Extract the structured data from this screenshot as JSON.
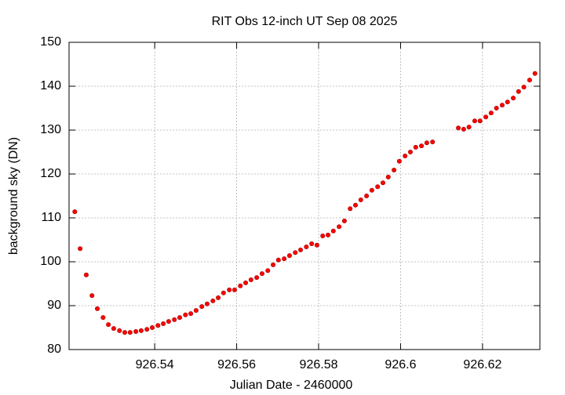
{
  "chart_data": {
    "type": "scatter",
    "title": "RIT Obs 12-inch UT Sep 08 2025",
    "x_label": "Julian Date - 2460000",
    "y_label": "background sky (DN)",
    "color": "#ff0000",
    "grid": true,
    "xlim": [
      926.5191,
      926.634
    ],
    "ylim": [
      80,
      150
    ],
    "xticks": [
      926.54,
      926.56,
      926.58,
      926.6,
      926.62
    ],
    "yticks": [
      80,
      90,
      100,
      110,
      120,
      130,
      140,
      150
    ],
    "x": [
      926.5205,
      926.5218,
      926.5233,
      926.5247,
      926.526,
      926.5274,
      926.5287,
      926.53,
      926.5314,
      926.5327,
      926.534,
      926.5354,
      926.5367,
      926.5381,
      926.5394,
      926.5408,
      926.5421,
      926.5434,
      926.5448,
      926.5461,
      926.5475,
      926.5488,
      926.5501,
      926.5515,
      926.5528,
      926.5542,
      926.5555,
      926.5568,
      926.5582,
      926.5595,
      926.5609,
      926.5622,
      926.5635,
      926.5649,
      926.5662,
      926.5676,
      926.5689,
      926.5702,
      926.5716,
      926.5729,
      926.5743,
      926.5756,
      926.577,
      926.5783,
      926.5796,
      926.581,
      926.5823,
      926.5836,
      926.585,
      926.5863,
      926.5877,
      926.589,
      926.5903,
      926.5917,
      926.593,
      926.5944,
      926.5957,
      926.597,
      926.5984,
      926.5997,
      926.6011,
      926.6024,
      926.6037,
      926.6051,
      926.6064,
      926.6078,
      926.6141,
      926.6154,
      926.6167,
      926.6181,
      926.6194,
      926.6208,
      926.6221,
      926.6234,
      926.6248,
      926.6261,
      926.6275,
      926.6288,
      926.6301,
      926.6315,
      926.6328
    ],
    "values": [
      111.4,
      103.0,
      97.0,
      92.3,
      89.3,
      87.3,
      85.7,
      84.8,
      84.3,
      83.9,
      83.9,
      84.1,
      84.3,
      84.6,
      85.0,
      85.5,
      85.9,
      86.4,
      86.8,
      87.3,
      87.9,
      88.2,
      88.9,
      89.8,
      90.4,
      91.1,
      91.8,
      92.9,
      93.6,
      93.6,
      94.5,
      95.2,
      95.9,
      96.4,
      97.3,
      98.0,
      99.3,
      100.4,
      100.7,
      101.4,
      102.1,
      102.7,
      103.4,
      104.1,
      103.8,
      105.9,
      106.1,
      107.0,
      108.0,
      109.3,
      112.1,
      112.9,
      114.1,
      115.0,
      116.3,
      117.1,
      118.0,
      119.3,
      120.9,
      122.9,
      124.1,
      125.0,
      126.1,
      126.4,
      127.1,
      127.3,
      130.5,
      130.2,
      130.7,
      132.1,
      132.1,
      133.0,
      133.9,
      135.0,
      135.7,
      136.4,
      137.3,
      138.8,
      139.8,
      141.4,
      142.9
    ]
  }
}
